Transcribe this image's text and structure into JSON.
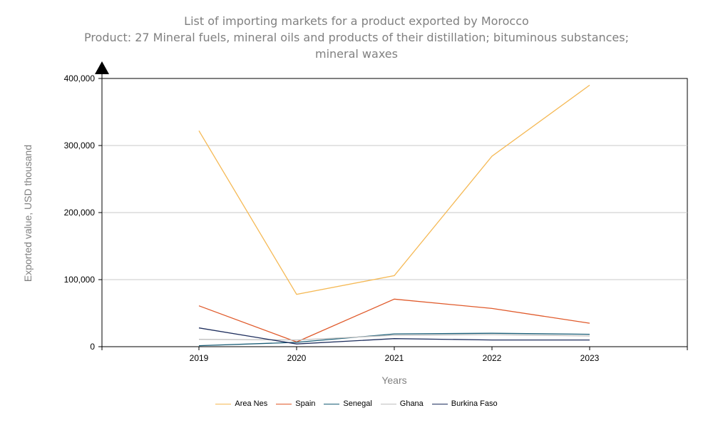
{
  "title": {
    "line1": "List of importing markets for a product exported by Morocco",
    "line2": "Product: 27 Mineral fuels, mineral oils and products of their distillation; bituminous substances;",
    "line3": "mineral waxes"
  },
  "chart_data": {
    "type": "line",
    "xlabel": "Years",
    "ylabel": "Exported value, USD thousand",
    "x": [
      "2019",
      "2020",
      "2021",
      "2022",
      "2023"
    ],
    "ylim": [
      0,
      400000
    ],
    "yticks": [
      "0",
      "100,000",
      "200,000",
      "300,000",
      "400,000"
    ],
    "yticks_values": [
      0,
      100000,
      200000,
      300000,
      400000
    ],
    "grid": "horizontal",
    "legend_position": "bottom",
    "series": [
      {
        "name": "Area Nes",
        "color": "#F5B955",
        "values": [
          322000,
          78000,
          106000,
          284000,
          390000
        ]
      },
      {
        "name": "Spain",
        "color": "#E05A2B",
        "values": [
          61000,
          7000,
          71000,
          57000,
          35000
        ]
      },
      {
        "name": "Senegal",
        "color": "#1A5E77",
        "values": [
          1500,
          6500,
          19000,
          20000,
          18500
        ]
      },
      {
        "name": "Ghana",
        "color": "#BFBFBF",
        "values": [
          11000,
          10000,
          17000,
          18000,
          16000
        ]
      },
      {
        "name": "Burkina Faso",
        "color": "#1F2F5E",
        "values": [
          28000,
          4000,
          12000,
          10000,
          10000
        ]
      }
    ]
  }
}
